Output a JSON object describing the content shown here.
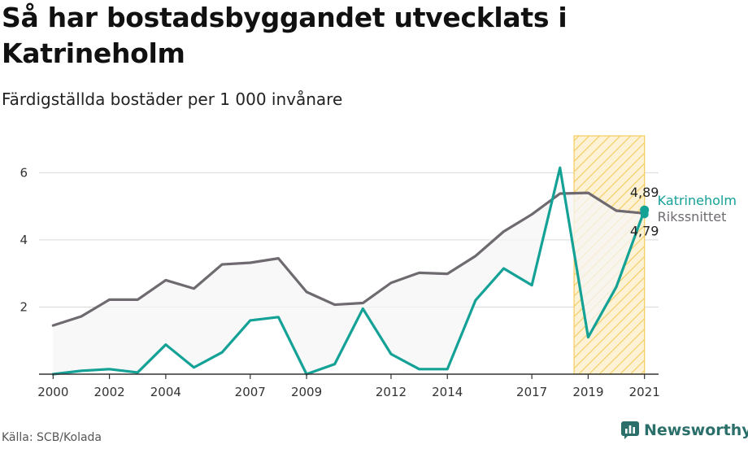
{
  "title": "Så har bostadsbyggandet utvecklats i Katrineholm",
  "subtitle": "Färdigställda bostäder per 1 000 invånare",
  "source": "Källa: SCB/Kolada",
  "brand": "Newsworthy",
  "colors": {
    "katrineholm": "#14a196",
    "riksnittet": "#6e6a70",
    "band": "#f5f5f5",
    "highlight_stroke": "#f4cb5c",
    "highlight_fill": "#fdf2d6",
    "grid": "#d9d9d9",
    "axis": "#333333"
  },
  "chart_data": {
    "type": "line",
    "title": "Så har bostadsbyggandet utvecklats i Katrineholm",
    "subtitle": "Färdigställda bostäder per 1 000 invånare",
    "x": [
      2000,
      2001,
      2002,
      2003,
      2004,
      2005,
      2006,
      2007,
      2008,
      2009,
      2010,
      2011,
      2012,
      2013,
      2014,
      2015,
      2016,
      2017,
      2018,
      2019,
      2020,
      2021
    ],
    "x_tick_labels": [
      "2000",
      "2002",
      "2004",
      "2007",
      "2009",
      "2012",
      "2014",
      "2017",
      "2019",
      "2021"
    ],
    "series": [
      {
        "name": "Katrineholm",
        "values": [
          0.0,
          0.1,
          0.15,
          0.05,
          0.88,
          0.2,
          0.65,
          1.6,
          1.7,
          0.0,
          0.3,
          1.95,
          0.6,
          0.15,
          0.15,
          2.2,
          3.15,
          2.65,
          6.15,
          1.1,
          2.6,
          4.89
        ]
      },
      {
        "name": "Rikssnittet",
        "values": [
          1.45,
          1.72,
          2.22,
          2.22,
          2.8,
          2.55,
          3.27,
          3.32,
          3.45,
          2.45,
          2.07,
          2.12,
          2.72,
          3.02,
          2.99,
          3.52,
          4.25,
          4.76,
          5.38,
          5.4,
          4.87,
          4.79
        ]
      }
    ],
    "yticks": [
      2,
      4,
      6
    ],
    "ylim": [
      0,
      7.1
    ],
    "xlim": [
      1999.5,
      2021.5
    ],
    "highlight_range": [
      2018.5,
      2021
    ],
    "end_labels": {
      "katrineholm": "4,89",
      "riksnittet": "4,79"
    },
    "grid": true,
    "legend": "end-of-line labels"
  }
}
